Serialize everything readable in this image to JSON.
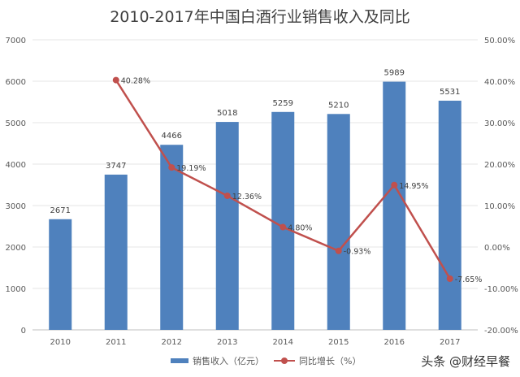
{
  "chart_data": {
    "type": "bar+line",
    "title": "2010-2017年中国白酒行业销售收入及同比",
    "categories": [
      "2010",
      "2011",
      "2012",
      "2013",
      "2014",
      "2015",
      "2016",
      "2017"
    ],
    "series": [
      {
        "name": "销售收入（亿元）",
        "type": "bar",
        "axis": "left",
        "color": "#4f81bd",
        "values": [
          2671,
          3747,
          4466,
          5018,
          5259,
          5210,
          5989,
          5531
        ],
        "labels": [
          "2671",
          "3747",
          "4466",
          "5018",
          "5259",
          "5210",
          "5989",
          "5531"
        ]
      },
      {
        "name": "同比增长（%）",
        "type": "line",
        "axis": "right",
        "color": "#c0504d",
        "values": [
          null,
          40.28,
          19.19,
          12.36,
          4.8,
          -0.93,
          14.95,
          -7.65
        ],
        "labels": [
          "",
          "40.28%",
          "19.19%",
          "12.36%",
          "4.80%",
          "-0.93%",
          "14.95%",
          "-7.65%"
        ]
      }
    ],
    "y_left": {
      "range": [
        0,
        7000
      ],
      "ticks": [
        "0",
        "1000",
        "2000",
        "3000",
        "4000",
        "5000",
        "6000",
        "7000"
      ]
    },
    "y_right": {
      "range": [
        -20,
        50
      ],
      "ticks": [
        "-20.00%",
        "-10.00%",
        "0.00%",
        "10.00%",
        "20.00%",
        "30.00%",
        "40.00%",
        "50.00%"
      ]
    },
    "grid": true,
    "legend": "bottom"
  },
  "watermark": "头条 @财经早餐"
}
